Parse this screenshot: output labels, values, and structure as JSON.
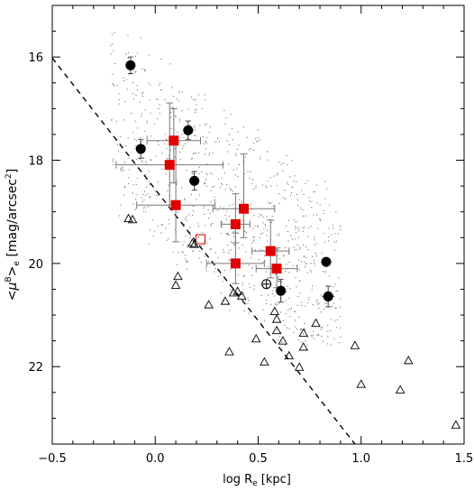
{
  "chart_data": {
    "type": "scatter",
    "xlabel": "log R_e [kpc]",
    "ylabel": "<μ^B>_e [mag/arcsec^2]",
    "xlim": [
      -0.5,
      1.5
    ],
    "ylim": [
      23.5,
      15.0
    ],
    "y_inverted": true,
    "x_major_ticks": [
      -0.5,
      0.0,
      0.5,
      1.0,
      1.5
    ],
    "x_tick_labels": [
      "−0.5",
      "0.0",
      "0.5",
      "1.0",
      "1.5"
    ],
    "y_major_ticks": [
      16,
      18,
      20,
      22
    ],
    "y_tick_labels": [
      "16",
      "18",
      "20",
      "22"
    ],
    "grid": false,
    "legend": "none",
    "colors": {
      "red_squares": "#e00000",
      "errorbars": "#777777",
      "axis": "#000000",
      "background_points": "#555555"
    },
    "series": [
      {
        "marker": "filled-square",
        "color": "#e00000",
        "points": [
          {
            "x": 0.09,
            "y": 17.62,
            "xerr": 0.13,
            "yerr_low": 0.82,
            "yerr_high": 0.62
          },
          {
            "x": 0.07,
            "y": 18.09,
            "xerr": 0.26,
            "yerr_low": 0.78,
            "yerr_high": 1.2
          },
          {
            "x": 0.1,
            "y": 18.87,
            "xerr": 0.19,
            "yerr_low": 0.71,
            "yerr_high": 1.22
          },
          {
            "x": 0.43,
            "y": 18.94,
            "xerr": 0.15,
            "yerr_low": 0.56,
            "yerr_high": 1.06
          },
          {
            "x": 0.39,
            "y": 19.24,
            "xerr": 0.07,
            "yerr_low": 0.36,
            "yerr_high": 0.59
          },
          {
            "x": 0.56,
            "y": 19.76,
            "xerr": 0.09,
            "yerr_low": 0.52,
            "yerr_high": 0.6
          },
          {
            "x": 0.39,
            "y": 20.0,
            "xerr": 0.14,
            "yerr_low": 0.39,
            "yerr_high": 0.59
          },
          {
            "x": 0.59,
            "y": 20.1,
            "xerr": 0.1,
            "yerr_low": 0.37,
            "yerr_high": 0.4
          }
        ]
      },
      {
        "marker": "filled-circle",
        "points": [
          {
            "x": -0.12,
            "y": 16.16,
            "yerr": 0.16
          },
          {
            "x": -0.07,
            "y": 17.78,
            "yerr": 0.18
          },
          {
            "x": 0.16,
            "y": 17.42,
            "yerr": 0.18
          },
          {
            "x": 0.19,
            "y": 18.4,
            "yerr": 0.18
          },
          {
            "x": 0.83,
            "y": 19.97,
            "yerr": 0.0
          },
          {
            "x": 0.61,
            "y": 20.53,
            "yerr": 0.22
          },
          {
            "x": 0.84,
            "y": 20.64,
            "xerr": 0.03,
            "yerr": 0.2
          }
        ]
      },
      {
        "marker": "open-square",
        "color": "#e00000",
        "points": [
          {
            "x": 0.22,
            "y": 19.53
          }
        ]
      },
      {
        "marker": "circled-plus",
        "points": [
          {
            "x": 0.54,
            "y": 20.4
          }
        ]
      },
      {
        "marker": "open-triangle",
        "points": [
          {
            "x": -0.13,
            "y": 19.13
          },
          {
            "x": -0.11,
            "y": 19.15
          },
          {
            "x": 0.18,
            "y": 19.61
          },
          {
            "x": 0.19,
            "y": 19.63
          },
          {
            "x": 0.11,
            "y": 20.25
          },
          {
            "x": 0.1,
            "y": 20.42
          },
          {
            "x": 0.26,
            "y": 20.8
          },
          {
            "x": 0.34,
            "y": 20.73
          },
          {
            "x": 0.38,
            "y": 20.57
          },
          {
            "x": 0.4,
            "y": 20.54
          },
          {
            "x": 0.42,
            "y": 20.63
          },
          {
            "x": 0.49,
            "y": 21.46
          },
          {
            "x": 0.36,
            "y": 21.71
          },
          {
            "x": 0.53,
            "y": 21.91
          },
          {
            "x": 0.58,
            "y": 20.93
          },
          {
            "x": 0.59,
            "y": 21.08
          },
          {
            "x": 0.59,
            "y": 21.3
          },
          {
            "x": 0.62,
            "y": 21.5
          },
          {
            "x": 0.65,
            "y": 21.79
          },
          {
            "x": 0.72,
            "y": 21.62
          },
          {
            "x": 0.72,
            "y": 21.35
          },
          {
            "x": 0.7,
            "y": 22.01
          },
          {
            "x": 0.78,
            "y": 21.16
          },
          {
            "x": 0.97,
            "y": 21.59
          },
          {
            "x": 1.0,
            "y": 22.34
          },
          {
            "x": 1.19,
            "y": 22.45
          },
          {
            "x": 1.23,
            "y": 21.88
          },
          {
            "x": 1.46,
            "y": 23.13
          }
        ]
      },
      {
        "marker": "dot-cloud",
        "description_region": "dense scatter of small dots roughly between x -0.2..0.9 and y 15.4..21.5",
        "count": 900
      },
      {
        "marker": "dashed-line",
        "points": [
          {
            "x": -0.5,
            "y": 16.02
          },
          {
            "x": 0.97,
            "y": 23.5
          }
        ]
      }
    ]
  }
}
